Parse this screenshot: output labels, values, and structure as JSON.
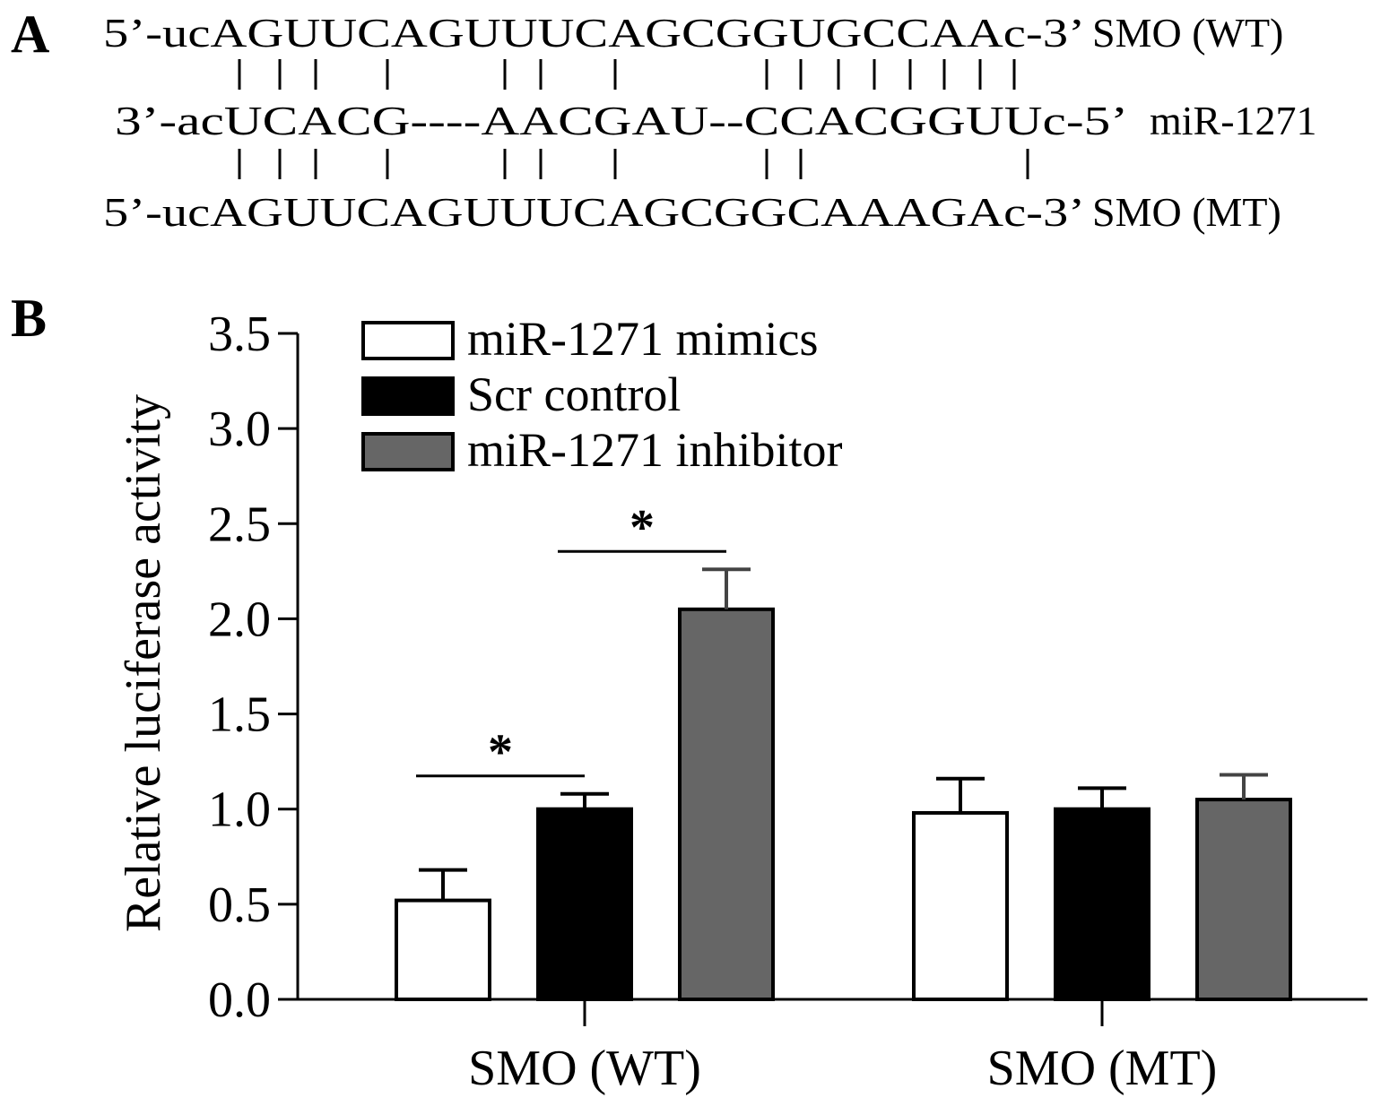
{
  "panels": {
    "a_label": "A",
    "b_label": "B"
  },
  "panel_a": {
    "wt_seq": "5’-ucAGUUCAGUUUCAGCGGUGCCAAc-3’",
    "wt_name": "SMO (WT)",
    "mir_seq": "3’-acUCACG----AACGAU--CCACGGUUc-5’",
    "mir_name": "miR-1271",
    "mt_seq": "5’-ucAGUUCAGUUUCAGCGGCAAAGAc-3’",
    "mt_name": "SMO (MT)",
    "pairing_top": "|||   |    ||   |       ||||||||",
    "pairing_bottom": "|||   |    ||   |       ||      |"
  },
  "chart_data": {
    "type": "bar",
    "ylabel": "Relative luciferase activity",
    "xlabel": "",
    "ylim": [
      0,
      3.5
    ],
    "yticks": [
      "0.0",
      "0.5",
      "1.0",
      "1.5",
      "2.0",
      "2.5",
      "3.0",
      "3.5"
    ],
    "categories": [
      "SMO (WT)",
      "SMO (MT)"
    ],
    "series": [
      {
        "name": "miR-1271 mimics",
        "color": "#ffffff",
        "values": [
          0.52,
          0.98
        ],
        "errors": [
          0.16,
          0.18
        ]
      },
      {
        "name": "Scr control",
        "color": "#000000",
        "values": [
          1.0,
          1.0
        ],
        "errors": [
          0.08,
          0.11
        ]
      },
      {
        "name": "miR-1271 inhibitor",
        "color": "#666666",
        "values": [
          2.05,
          1.05
        ],
        "errors": [
          0.21,
          0.13
        ]
      }
    ],
    "significance": [
      {
        "group": 0,
        "between": [
          0,
          1
        ],
        "label": "*"
      },
      {
        "group": 0,
        "between": [
          1,
          2
        ],
        "label": "*"
      }
    ],
    "legend_position": "top-left"
  }
}
